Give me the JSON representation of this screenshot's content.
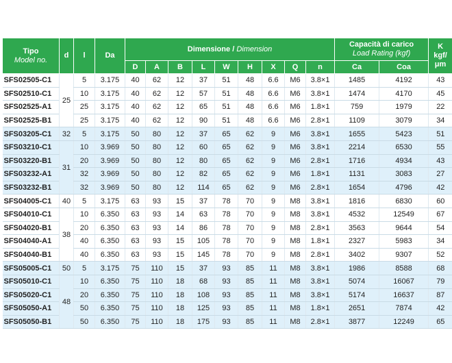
{
  "header": {
    "tipo": "Tipo",
    "model": "Model no.",
    "d": "d",
    "l": "l",
    "da": "Da",
    "dimension_it": "Dimensione",
    "dimension_sep": "/",
    "dimension_en": "Dimension",
    "load_it": "Capacità di carico",
    "load_en": "Load Rating (kgf)",
    "k": "K",
    "k_unit": "kgf/μm",
    "sub": [
      "D",
      "A",
      "B",
      "L",
      "W",
      "H",
      "X",
      "Q",
      "n",
      "Ca",
      "Coa"
    ]
  },
  "table": {
    "rows": [
      [
        "SFS02505-C1",
        "25",
        "5",
        "3.175",
        "40",
        "62",
        "12",
        "37",
        "51",
        "48",
        "6.6",
        "M6",
        "3.8×1",
        "1485",
        "4192",
        "43"
      ],
      [
        "SFS02510-C1",
        null,
        "10",
        "3.175",
        "40",
        "62",
        "12",
        "57",
        "51",
        "48",
        "6.6",
        "M6",
        "3.8×1",
        "1474",
        "4170",
        "45"
      ],
      [
        "SFS02525-A1",
        null,
        "25",
        "3.175",
        "40",
        "62",
        "12",
        "65",
        "51",
        "48",
        "6.6",
        "M6",
        "1.8×1",
        "759",
        "1979",
        "22"
      ],
      [
        "SFS02525-B1",
        null,
        "25",
        "3.175",
        "40",
        "62",
        "12",
        "90",
        "51",
        "48",
        "6.6",
        "M6",
        "2.8×1",
        "1109",
        "3079",
        "34"
      ],
      [
        "SFS03205-C1",
        "32",
        "5",
        "3.175",
        "50",
        "80",
        "12",
        "37",
        "65",
        "62",
        "9",
        "M6",
        "3.8×1",
        "1655",
        "5423",
        "51"
      ],
      [
        "SFS03210-C1",
        "31",
        "10",
        "3.969",
        "50",
        "80",
        "12",
        "60",
        "65",
        "62",
        "9",
        "M6",
        "3.8×1",
        "2214",
        "6530",
        "55"
      ],
      [
        "SFS03220-B1",
        null,
        "20",
        "3.969",
        "50",
        "80",
        "12",
        "80",
        "65",
        "62",
        "9",
        "M6",
        "2.8×1",
        "1716",
        "4934",
        "43"
      ],
      [
        "SFS03232-A1",
        null,
        "32",
        "3.969",
        "50",
        "80",
        "12",
        "82",
        "65",
        "62",
        "9",
        "M6",
        "1.8×1",
        "1131",
        "3083",
        "27"
      ],
      [
        "SFS03232-B1",
        null,
        "32",
        "3.969",
        "50",
        "80",
        "12",
        "114",
        "65",
        "62",
        "9",
        "M6",
        "2.8×1",
        "1654",
        "4796",
        "42"
      ],
      [
        "SFS04005-C1",
        "40",
        "5",
        "3.175",
        "63",
        "93",
        "15",
        "37",
        "78",
        "70",
        "9",
        "M8",
        "3.8×1",
        "1816",
        "6830",
        "60"
      ],
      [
        "SFS04010-C1",
        "38",
        "10",
        "6.350",
        "63",
        "93",
        "14",
        "63",
        "78",
        "70",
        "9",
        "M8",
        "3.8×1",
        "4532",
        "12549",
        "67"
      ],
      [
        "SFS04020-B1",
        null,
        "20",
        "6.350",
        "63",
        "93",
        "14",
        "86",
        "78",
        "70",
        "9",
        "M8",
        "2.8×1",
        "3563",
        "9644",
        "54"
      ],
      [
        "SFS04040-A1",
        null,
        "40",
        "6.350",
        "63",
        "93",
        "15",
        "105",
        "78",
        "70",
        "9",
        "M8",
        "1.8×1",
        "2327",
        "5983",
        "34"
      ],
      [
        "SFS04040-B1",
        null,
        "40",
        "6.350",
        "63",
        "93",
        "15",
        "145",
        "78",
        "70",
        "9",
        "M8",
        "2.8×1",
        "3402",
        "9307",
        "52"
      ],
      [
        "SFS05005-C1",
        "50",
        "5",
        "3.175",
        "75",
        "110",
        "15",
        "37",
        "93",
        "85",
        "11",
        "M8",
        "3.8×1",
        "1986",
        "8588",
        "68"
      ],
      [
        "SFS05010-C1",
        "48",
        "10",
        "6.350",
        "75",
        "110",
        "18",
        "68",
        "93",
        "85",
        "11",
        "M8",
        "3.8×1",
        "5074",
        "16067",
        "79"
      ],
      [
        "SFS05020-C1",
        null,
        "20",
        "6.350",
        "75",
        "110",
        "18",
        "108",
        "93",
        "85",
        "11",
        "M8",
        "3.8×1",
        "5174",
        "16637",
        "87"
      ],
      [
        "SFS05050-A1",
        null,
        "50",
        "6.350",
        "75",
        "110",
        "18",
        "125",
        "93",
        "85",
        "11",
        "M8",
        "1.8×1",
        "2651",
        "7874",
        "42"
      ],
      [
        "SFS05050-B1",
        null,
        "50",
        "6.350",
        "75",
        "110",
        "18",
        "175",
        "93",
        "85",
        "11",
        "M8",
        "2.8×1",
        "3877",
        "12249",
        "65"
      ]
    ]
  }
}
